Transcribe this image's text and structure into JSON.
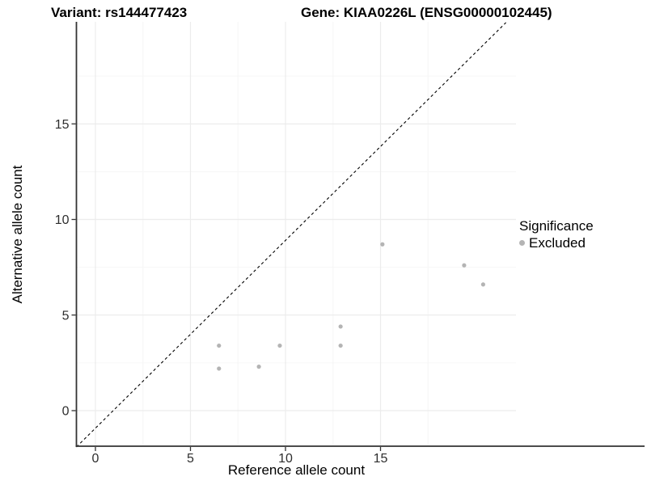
{
  "chart_data": {
    "type": "scatter",
    "titles": {
      "left": "Variant: rs144477423",
      "right": "Gene: KIAA0226L (ENSG00000102445)"
    },
    "xlabel": "Reference allele count",
    "ylabel": "Alternative allele count",
    "xlim": [
      -1.0,
      22.1
    ],
    "ylim": [
      -1.9,
      20.4
    ],
    "x_ticks": [
      0,
      5,
      10,
      15
    ],
    "y_ticks": [
      0,
      5,
      10,
      15
    ],
    "x_minor_gridlines": [
      2.5,
      7.5,
      12.5,
      17.5
    ],
    "y_minor_gridlines": [
      2.5,
      7.5,
      12.5,
      17.5
    ],
    "grid": true,
    "series": [
      {
        "name": "Excluded",
        "color": "#b4b4b4",
        "points": [
          [
            6.5,
            3.4
          ],
          [
            6.5,
            2.2
          ],
          [
            8.6,
            2.3
          ],
          [
            9.7,
            3.4
          ],
          [
            12.9,
            4.4
          ],
          [
            12.9,
            3.4
          ],
          [
            15.1,
            8.7
          ],
          [
            19.4,
            7.6
          ],
          [
            20.4,
            6.6
          ]
        ]
      }
    ],
    "identity_line": {
      "style": "dashed",
      "slope": 1,
      "x1": -1.0,
      "y1": -1.9,
      "x2": 21.6,
      "y2": 20.3
    },
    "legend": {
      "title": "Significance",
      "position": "right"
    },
    "colors": {
      "point": "#b4b4b4",
      "grid_major": "#ececec",
      "grid_minor": "#f6f6f6",
      "axis_line": "#333333",
      "tick_mark": "#333333",
      "tick_text": "#2e2e2e",
      "identity_line": "#000000"
    }
  }
}
